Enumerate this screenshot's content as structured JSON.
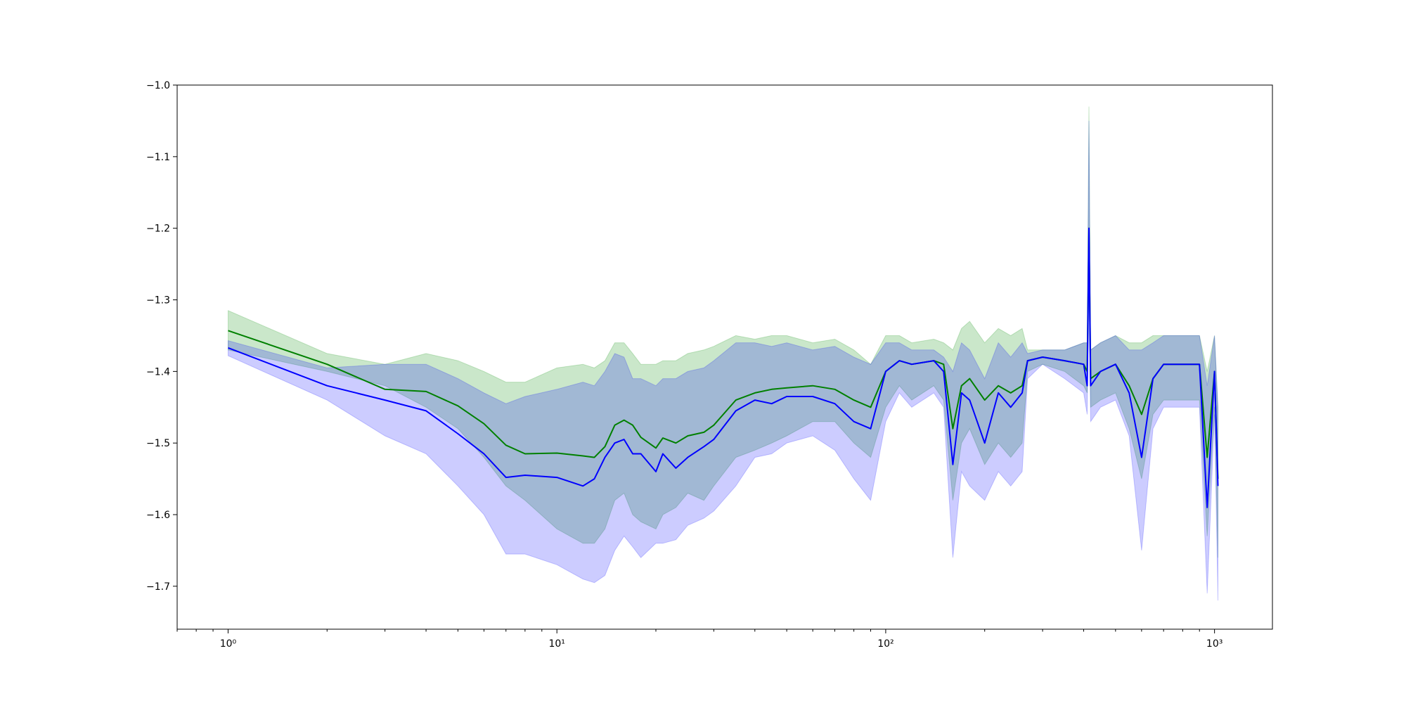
{
  "chart_data": {
    "type": "line",
    "title": "",
    "xlabel": "",
    "ylabel": "",
    "xscale": "log",
    "xlim": [
      0.7,
      1500
    ],
    "ylim": [
      -1.76,
      -1.0
    ],
    "grid": false,
    "x_ticks": [
      {
        "value": 1,
        "label": "10⁰"
      },
      {
        "value": 10,
        "label": "10¹"
      },
      {
        "value": 100,
        "label": "10²"
      },
      {
        "value": 1000,
        "label": "10³"
      }
    ],
    "y_ticks": [
      {
        "value": -1.0,
        "label": "−1.0"
      },
      {
        "value": -1.1,
        "label": "−1.1"
      },
      {
        "value": -1.2,
        "label": "−1.2"
      },
      {
        "value": -1.3,
        "label": "−1.3"
      },
      {
        "value": -1.4,
        "label": "−1.4"
      },
      {
        "value": -1.5,
        "label": "−1.5"
      },
      {
        "value": -1.6,
        "label": "−1.6"
      },
      {
        "value": -1.7,
        "label": "−1.7"
      }
    ],
    "series": [
      {
        "color": "#008000",
        "band_color": "#2ca02c",
        "band_opacity": 0.25,
        "x": [
          1,
          2,
          3,
          4,
          5,
          6,
          7,
          8,
          10,
          12,
          13,
          14,
          15,
          16,
          17,
          18,
          20,
          21,
          23,
          25,
          28,
          30,
          35,
          40,
          45,
          50,
          60,
          70,
          80,
          90,
          100,
          110,
          120,
          140,
          150,
          160,
          170,
          180,
          200,
          220,
          240,
          260,
          270,
          300,
          350,
          400,
          410,
          415,
          420,
          450,
          500,
          550,
          600,
          650,
          700,
          800,
          900,
          950,
          1000,
          1024
        ],
        "y": [
          -1.343,
          -1.39,
          -1.425,
          -1.428,
          -1.448,
          -1.473,
          -1.503,
          -1.515,
          -1.514,
          -1.518,
          -1.52,
          -1.505,
          -1.475,
          -1.468,
          -1.475,
          -1.492,
          -1.507,
          -1.493,
          -1.5,
          -1.49,
          -1.485,
          -1.475,
          -1.44,
          -1.43,
          -1.425,
          -1.423,
          -1.42,
          -1.425,
          -1.44,
          -1.45,
          -1.4,
          -1.385,
          -1.39,
          -1.385,
          -1.39,
          -1.48,
          -1.42,
          -1.41,
          -1.44,
          -1.42,
          -1.43,
          -1.42,
          -1.385,
          -1.38,
          -1.385,
          -1.39,
          -1.4,
          -1.2,
          -1.41,
          -1.4,
          -1.39,
          -1.42,
          -1.46,
          -1.41,
          -1.39,
          -1.39,
          -1.39,
          -1.52,
          -1.4,
          -1.55
        ],
        "lo": [
          -1.37,
          -1.4,
          -1.42,
          -1.45,
          -1.48,
          -1.52,
          -1.56,
          -1.58,
          -1.62,
          -1.64,
          -1.64,
          -1.62,
          -1.58,
          -1.57,
          -1.6,
          -1.61,
          -1.62,
          -1.6,
          -1.59,
          -1.57,
          -1.58,
          -1.56,
          -1.52,
          -1.51,
          -1.5,
          -1.49,
          -1.47,
          -1.47,
          -1.5,
          -1.52,
          -1.45,
          -1.42,
          -1.44,
          -1.42,
          -1.44,
          -1.58,
          -1.5,
          -1.48,
          -1.53,
          -1.5,
          -1.52,
          -1.5,
          -1.4,
          -1.39,
          -1.4,
          -1.42,
          -1.43,
          -1.3,
          -1.45,
          -1.44,
          -1.43,
          -1.48,
          -1.55,
          -1.46,
          -1.44,
          -1.44,
          -1.44,
          -1.63,
          -1.45,
          -1.66
        ],
        "hi": [
          -1.315,
          -1.375,
          -1.39,
          -1.375,
          -1.385,
          -1.4,
          -1.415,
          -1.415,
          -1.395,
          -1.39,
          -1.395,
          -1.385,
          -1.36,
          -1.36,
          -1.375,
          -1.39,
          -1.39,
          -1.385,
          -1.385,
          -1.375,
          -1.37,
          -1.365,
          -1.35,
          -1.355,
          -1.35,
          -1.35,
          -1.36,
          -1.355,
          -1.37,
          -1.39,
          -1.35,
          -1.35,
          -1.36,
          -1.355,
          -1.36,
          -1.37,
          -1.34,
          -1.33,
          -1.36,
          -1.34,
          -1.35,
          -1.34,
          -1.37,
          -1.37,
          -1.37,
          -1.36,
          -1.36,
          -1.03,
          -1.37,
          -1.36,
          -1.35,
          -1.36,
          -1.36,
          -1.35,
          -1.35,
          -1.35,
          -1.35,
          -1.4,
          -1.35,
          -1.45
        ]
      },
      {
        "color": "#0000ff",
        "band_color": "#0000ff",
        "band_opacity": 0.2,
        "x": [
          1,
          2,
          3,
          4,
          5,
          6,
          7,
          8,
          10,
          12,
          13,
          14,
          15,
          16,
          17,
          18,
          20,
          21,
          23,
          25,
          28,
          30,
          35,
          40,
          45,
          50,
          60,
          70,
          80,
          90,
          100,
          110,
          120,
          140,
          150,
          160,
          170,
          180,
          200,
          220,
          240,
          260,
          270,
          300,
          350,
          400,
          410,
          415,
          420,
          450,
          500,
          550,
          600,
          650,
          700,
          800,
          900,
          950,
          1000,
          1024
        ],
        "y": [
          -1.367,
          -1.42,
          -1.44,
          -1.455,
          -1.487,
          -1.515,
          -1.548,
          -1.545,
          -1.548,
          -1.56,
          -1.55,
          -1.52,
          -1.5,
          -1.495,
          -1.515,
          -1.515,
          -1.54,
          -1.515,
          -1.535,
          -1.52,
          -1.505,
          -1.495,
          -1.455,
          -1.44,
          -1.445,
          -1.435,
          -1.435,
          -1.445,
          -1.47,
          -1.48,
          -1.4,
          -1.385,
          -1.39,
          -1.385,
          -1.4,
          -1.53,
          -1.43,
          -1.44,
          -1.5,
          -1.43,
          -1.45,
          -1.43,
          -1.385,
          -1.38,
          -1.385,
          -1.39,
          -1.42,
          -1.2,
          -1.42,
          -1.4,
          -1.39,
          -1.43,
          -1.52,
          -1.41,
          -1.39,
          -1.39,
          -1.39,
          -1.59,
          -1.4,
          -1.56
        ],
        "lo": [
          -1.378,
          -1.44,
          -1.49,
          -1.515,
          -1.56,
          -1.6,
          -1.655,
          -1.655,
          -1.67,
          -1.69,
          -1.695,
          -1.685,
          -1.65,
          -1.63,
          -1.645,
          -1.66,
          -1.64,
          -1.64,
          -1.635,
          -1.615,
          -1.605,
          -1.595,
          -1.56,
          -1.52,
          -1.515,
          -1.5,
          -1.49,
          -1.51,
          -1.55,
          -1.58,
          -1.47,
          -1.43,
          -1.45,
          -1.43,
          -1.45,
          -1.66,
          -1.54,
          -1.56,
          -1.58,
          -1.54,
          -1.56,
          -1.54,
          -1.41,
          -1.39,
          -1.41,
          -1.43,
          -1.46,
          -1.28,
          -1.47,
          -1.45,
          -1.44,
          -1.49,
          -1.65,
          -1.48,
          -1.45,
          -1.45,
          -1.45,
          -1.71,
          -1.46,
          -1.72
        ],
        "hi": [
          -1.357,
          -1.395,
          -1.39,
          -1.39,
          -1.41,
          -1.43,
          -1.445,
          -1.435,
          -1.425,
          -1.415,
          -1.42,
          -1.4,
          -1.375,
          -1.38,
          -1.41,
          -1.41,
          -1.42,
          -1.41,
          -1.41,
          -1.4,
          -1.395,
          -1.385,
          -1.36,
          -1.36,
          -1.365,
          -1.36,
          -1.37,
          -1.365,
          -1.38,
          -1.39,
          -1.36,
          -1.36,
          -1.37,
          -1.37,
          -1.38,
          -1.4,
          -1.36,
          -1.37,
          -1.41,
          -1.36,
          -1.38,
          -1.36,
          -1.375,
          -1.37,
          -1.37,
          -1.36,
          -1.36,
          -1.05,
          -1.37,
          -1.36,
          -1.35,
          -1.37,
          -1.37,
          -1.36,
          -1.35,
          -1.35,
          -1.35,
          -1.42,
          -1.35,
          -1.45
        ]
      }
    ]
  }
}
